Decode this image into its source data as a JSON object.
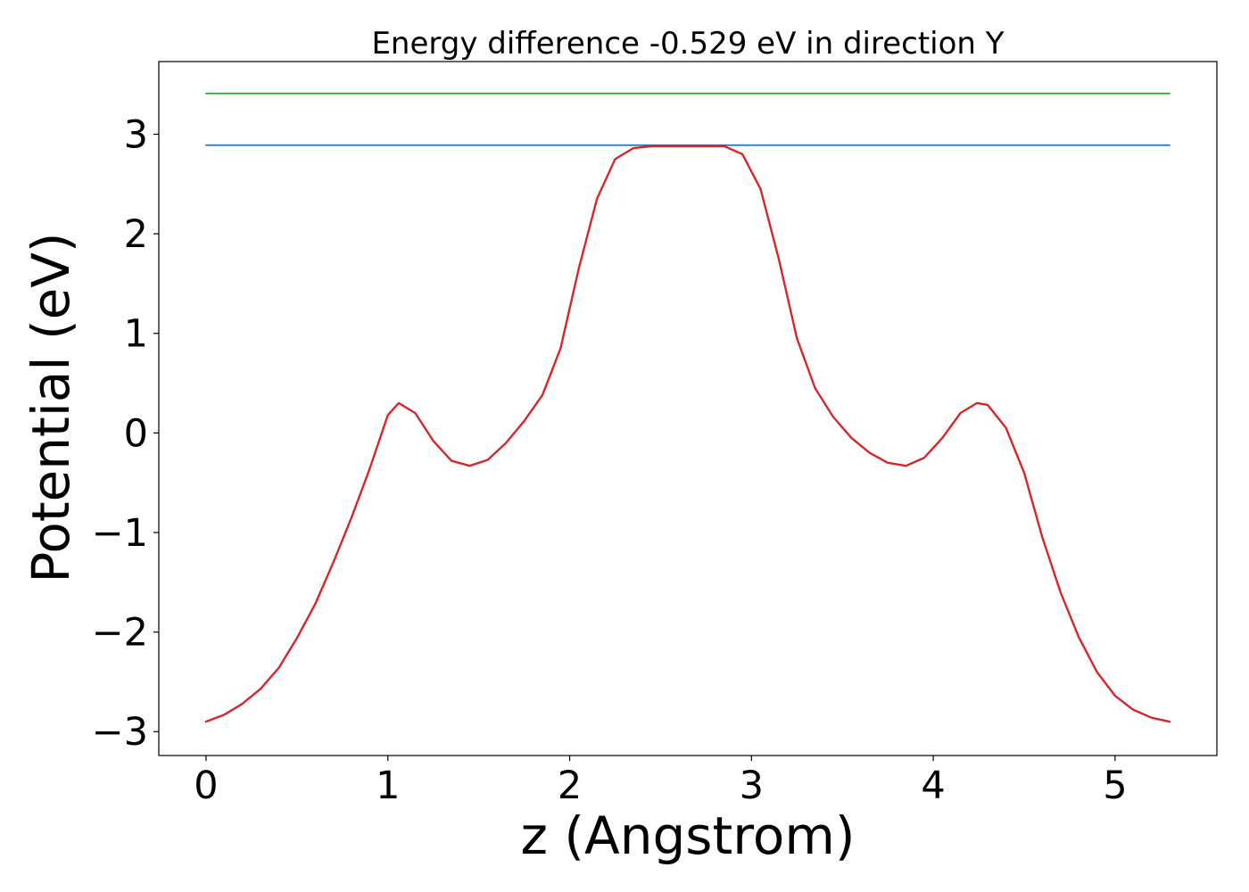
{
  "chart_data": {
    "type": "line",
    "title": "Energy difference -0.529 eV in direction Y",
    "xlabel": "z (Angstrom)",
    "ylabel": "Potential (eV)",
    "xlim": [
      -0.26,
      5.56
    ],
    "ylim": [
      -3.24,
      3.73
    ],
    "xticks": [
      0,
      1,
      2,
      3,
      4,
      5
    ],
    "yticks": [
      -3,
      -2,
      -1,
      0,
      1,
      2,
      3
    ],
    "xtick_labels": [
      "0",
      "1",
      "2",
      "3",
      "4",
      "5"
    ],
    "ytick_labels": [
      "−3",
      "−2",
      "−1",
      "0",
      "1",
      "2",
      "3"
    ],
    "grid": false,
    "legend": "none",
    "series": [
      {
        "color": "#2ca02c",
        "x": [
          0,
          5.3
        ],
        "y": [
          3.41,
          3.41
        ]
      },
      {
        "color": "#1f77b4",
        "x": [
          0,
          5.3
        ],
        "y": [
          2.89,
          2.89
        ]
      },
      {
        "color": "#d62728",
        "x": [
          0,
          0.1,
          0.2,
          0.3,
          0.4,
          0.5,
          0.6,
          0.7,
          0.8,
          0.9,
          1.0,
          1.06,
          1.15,
          1.25,
          1.35,
          1.45,
          1.55,
          1.65,
          1.75,
          1.85,
          1.95,
          2.05,
          2.15,
          2.25,
          2.35,
          2.45,
          2.55,
          2.65,
          2.75,
          2.85,
          2.95,
          3.05,
          3.15,
          3.25,
          3.35,
          3.45,
          3.55,
          3.65,
          3.75,
          3.85,
          3.95,
          4.05,
          4.15,
          4.24,
          4.3,
          4.4,
          4.5,
          4.6,
          4.7,
          4.8,
          4.9,
          5.0,
          5.1,
          5.2,
          5.3
        ],
        "y": [
          -2.9,
          -2.83,
          -2.72,
          -2.57,
          -2.36,
          -2.06,
          -1.72,
          -1.3,
          -0.85,
          -0.36,
          0.18,
          0.3,
          0.2,
          -0.08,
          -0.28,
          -0.33,
          -0.27,
          -0.1,
          0.12,
          0.38,
          0.85,
          1.65,
          2.35,
          2.75,
          2.86,
          2.88,
          2.88,
          2.88,
          2.88,
          2.88,
          2.8,
          2.45,
          1.75,
          0.95,
          0.45,
          0.16,
          -0.05,
          -0.2,
          -0.3,
          -0.33,
          -0.25,
          -0.05,
          0.2,
          0.3,
          0.28,
          0.05,
          -0.4,
          -1.05,
          -1.6,
          -2.05,
          -2.4,
          -2.64,
          -2.78,
          -2.86,
          -2.9
        ]
      }
    ]
  }
}
